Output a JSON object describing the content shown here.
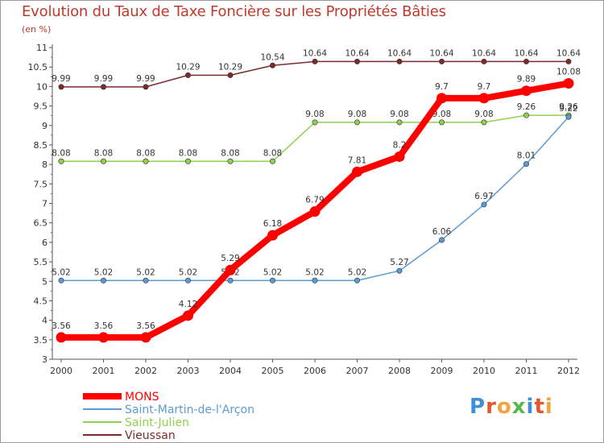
{
  "title": "Evolution du Taux de Taxe Foncière sur les Propriétés Bâties",
  "subtitle": "(en %)",
  "logo": "Proxiti",
  "chart_data": {
    "type": "line",
    "title": "Evolution du Taux de Taxe Foncière sur les Propriétés Bâties",
    "ylabel": "(en %)",
    "xlabel": "",
    "ylim": [
      3,
      11
    ],
    "yticks": [
      "3",
      "3.5",
      "4",
      "4.5",
      "5",
      "5.5",
      "6",
      "6.5",
      "7",
      "7.5",
      "8",
      "8.5",
      "9",
      "9.5",
      "10",
      "10.5",
      "11"
    ],
    "categories": [
      "2000",
      "2001",
      "2002",
      "2003",
      "2004",
      "2005",
      "2006",
      "2007",
      "2008",
      "2009",
      "2010",
      "2011",
      "2012"
    ],
    "series": [
      {
        "name": "MONS",
        "color": "#ff0000",
        "values": [
          3.56,
          3.56,
          3.56,
          4.12,
          5.29,
          6.18,
          6.79,
          7.81,
          8.2,
          9.7,
          9.7,
          9.89,
          10.08
        ],
        "labels": [
          "3.56",
          "3.56",
          "3.56",
          "4.12",
          "5.29",
          "6.18",
          "6.79",
          "7.81",
          "8.2",
          "9.7",
          "9.7",
          "9.89",
          "10.08"
        ]
      },
      {
        "name": "Saint-Martin-de-l'Arçon",
        "color": "#5b9bd5",
        "values": [
          5.02,
          5.02,
          5.02,
          5.02,
          5.02,
          5.02,
          5.02,
          5.02,
          5.27,
          6.06,
          6.97,
          8.01,
          9.22
        ],
        "labels": [
          "5.02",
          "5.02",
          "5.02",
          "5.02",
          "5.02",
          "5.02",
          "5.02",
          "5.02",
          "5.27",
          "6.06",
          "6.97",
          "8.01",
          "9.22"
        ]
      },
      {
        "name": "Saint-Julien",
        "color": "#8fd14f",
        "values": [
          8.08,
          8.08,
          8.08,
          8.08,
          8.08,
          8.08,
          9.08,
          9.08,
          9.08,
          9.08,
          9.08,
          9.26,
          9.26
        ],
        "labels": [
          "8.08",
          "8.08",
          "8.08",
          "8.08",
          "8.08",
          "8.08",
          "9.08",
          "9.08",
          "9.08",
          "9.08",
          "9.08",
          "9.26",
          "9.26"
        ]
      },
      {
        "name": "Vieussan",
        "color": "#7b2b2b",
        "values": [
          9.99,
          9.99,
          9.99,
          10.29,
          10.29,
          10.54,
          10.64,
          10.64,
          10.64,
          10.64,
          10.64,
          10.64,
          10.64
        ],
        "labels": [
          "9.99",
          "9.99",
          "9.99",
          "10.29",
          "10.29",
          "10.54",
          "10.64",
          "10.64",
          "10.64",
          "10.64",
          "10.64",
          "10.64",
          "10.64"
        ]
      }
    ],
    "legend_position": "bottom-left"
  }
}
